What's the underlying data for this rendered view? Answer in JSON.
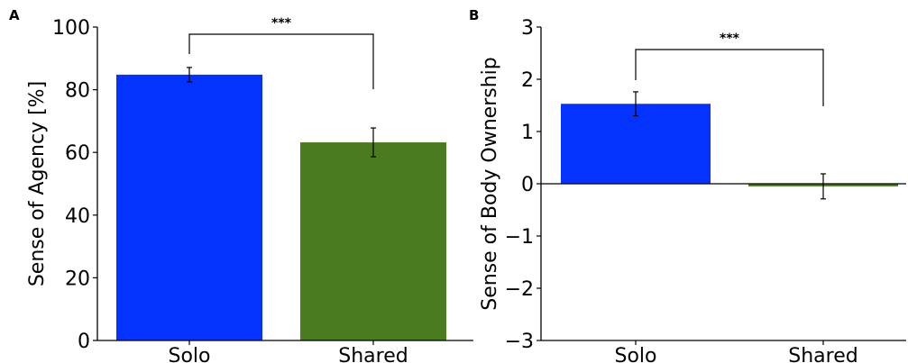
{
  "chart_data": [
    {
      "panel": "A",
      "type": "bar",
      "categories": [
        "Solo",
        "Shared"
      ],
      "values": [
        84.8,
        63.2
      ],
      "errors": [
        2.3,
        4.6
      ],
      "colors": [
        "#0433ff",
        "#4a7c1f"
      ],
      "ylabel": "Sense of Agency [%]",
      "ylim": [
        0,
        100
      ],
      "yticks": [
        0,
        20,
        40,
        60,
        80,
        100
      ],
      "significance": {
        "between": [
          "Solo",
          "Shared"
        ],
        "label": "***"
      },
      "grid": false
    },
    {
      "panel": "B",
      "type": "bar",
      "categories": [
        "Solo",
        "Shared"
      ],
      "values": [
        1.53,
        -0.05
      ],
      "errors": [
        0.23,
        0.24
      ],
      "colors": [
        "#0433ff",
        "#4a7c1f"
      ],
      "ylabel": "Sense of Body Ownership",
      "ylim": [
        -3,
        3
      ],
      "yticks": [
        -3,
        -2,
        -1,
        0,
        1,
        2,
        3
      ],
      "significance": {
        "between": [
          "Solo",
          "Shared"
        ],
        "label": "***"
      },
      "grid": false
    }
  ]
}
